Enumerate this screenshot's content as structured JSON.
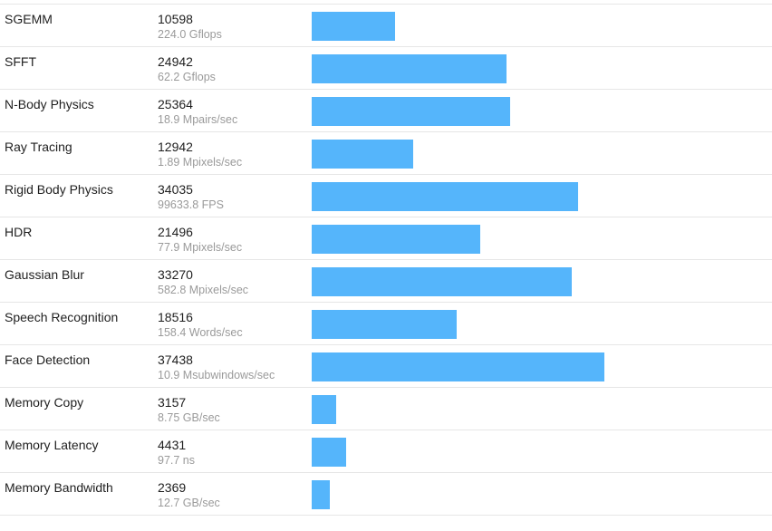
{
  "colors": {
    "bar": "#55b5fb",
    "divider": "#e6e6e6",
    "rate_text": "#9a9a9a"
  },
  "bar_max_score": 57900,
  "benchmarks": [
    {
      "name": "SGEMM",
      "score": "10598",
      "rate": "224.0 Gflops",
      "value": 10598
    },
    {
      "name": "SFFT",
      "score": "24942",
      "rate": "62.2 Gflops",
      "value": 24942
    },
    {
      "name": "N-Body Physics",
      "score": "25364",
      "rate": "18.9 Mpairs/sec",
      "value": 25364
    },
    {
      "name": "Ray Tracing",
      "score": "12942",
      "rate": "1.89 Mpixels/sec",
      "value": 12942
    },
    {
      "name": "Rigid Body Physics",
      "score": "34035",
      "rate": "99633.8 FPS",
      "value": 34035
    },
    {
      "name": "HDR",
      "score": "21496",
      "rate": "77.9 Mpixels/sec",
      "value": 21496
    },
    {
      "name": "Gaussian Blur",
      "score": "33270",
      "rate": "582.8 Mpixels/sec",
      "value": 33270
    },
    {
      "name": "Speech Recognition",
      "score": "18516",
      "rate": "158.4 Words/sec",
      "value": 18516
    },
    {
      "name": "Face Detection",
      "score": "37438",
      "rate": "10.9 Msubwindows/sec",
      "value": 37438
    },
    {
      "name": "Memory Copy",
      "score": "3157",
      "rate": "8.75 GB/sec",
      "value": 3157
    },
    {
      "name": "Memory Latency",
      "score": "4431",
      "rate": "97.7 ns",
      "value": 4431
    },
    {
      "name": "Memory Bandwidth",
      "score": "2369",
      "rate": "12.7 GB/sec",
      "value": 2369
    }
  ]
}
